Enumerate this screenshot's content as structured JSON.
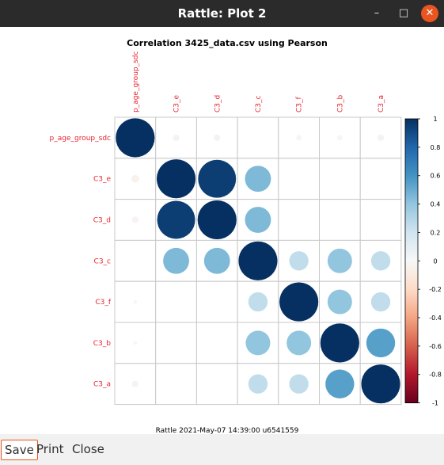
{
  "window": {
    "title": "Rattle: Plot 2",
    "minimize_glyph": "–",
    "maximize_glyph": "□",
    "close_glyph": "✕"
  },
  "buttons": {
    "save": "Save",
    "print": "Print",
    "close": "Close"
  },
  "plot": {
    "footer": "Rattle 2021-May-07 14:39:00 u6541559"
  },
  "chart_data": {
    "type": "heatmap",
    "title": "Correlation 3425_data.csv using Pearson",
    "variables": [
      "p_age_group_sdc",
      "C3_e",
      "C3_d",
      "C3_c",
      "C3_f",
      "C3_b",
      "C3_a"
    ],
    "matrix": [
      [
        1.0,
        0.03,
        0.03,
        0.0,
        0.02,
        0.02,
        0.03
      ],
      [
        -0.04,
        1.0,
        0.95,
        0.45,
        0.0,
        0.0,
        0.0
      ],
      [
        -0.03,
        0.95,
        1.0,
        0.45,
        0.0,
        0.0,
        0.0
      ],
      [
        0.0,
        0.45,
        0.45,
        1.0,
        0.25,
        0.4,
        0.25
      ],
      [
        0.01,
        0.0,
        0.0,
        0.25,
        1.0,
        0.4,
        0.25
      ],
      [
        0.01,
        0.0,
        0.0,
        0.4,
        0.4,
        1.0,
        0.55
      ],
      [
        -0.03,
        0.0,
        0.0,
        0.25,
        0.25,
        0.55,
        1.0
      ]
    ],
    "colorbar": {
      "ticks": [
        "1",
        "0.8",
        "0.6",
        "0.4",
        "0.2",
        "0",
        "-0.2",
        "-0.4",
        "-0.6",
        "-0.8",
        "-1"
      ],
      "range": [
        -1,
        1
      ],
      "colors": {
        "negative": "#67001f",
        "neutral": "#f7f7f7",
        "positive": "#053061"
      }
    },
    "label_color": "#e8242e",
    "grid": true
  }
}
